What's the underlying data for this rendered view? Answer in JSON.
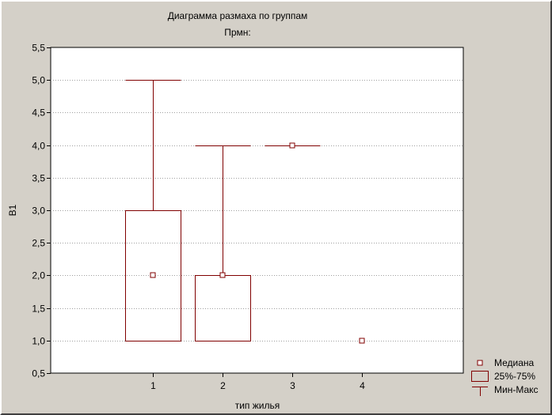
{
  "chart_data": {
    "type": "box",
    "title": "Диаграмма размаха по группам",
    "subtitle": "Прмн:",
    "xlabel": "тип жилья",
    "ylabel": "В1",
    "ylim": [
      0.5,
      5.5
    ],
    "yticks": [
      0.5,
      1.0,
      1.5,
      2.0,
      2.5,
      3.0,
      3.5,
      4.0,
      4.5,
      5.0,
      5.5
    ],
    "ytick_labels": [
      "0,5",
      "1,0",
      "1,5",
      "2,0",
      "2,5",
      "3,0",
      "3,5",
      "4,0",
      "4,5",
      "5,0",
      "5,5"
    ],
    "grid": true,
    "categories": [
      "1",
      "2",
      "3",
      "4"
    ],
    "groups": [
      {
        "category": "1",
        "median": 2,
        "q1": 1,
        "q3": 3,
        "min": 1,
        "max": 5
      },
      {
        "category": "2",
        "median": 2,
        "q1": 1,
        "q3": 2,
        "min": 1,
        "max": 4
      },
      {
        "category": "3",
        "median": 4,
        "q1": 4,
        "q3": 4,
        "min": 4,
        "max": 4
      },
      {
        "category": "4",
        "median": 1,
        "q1": 1,
        "q3": 1,
        "min": 1,
        "max": 1
      }
    ],
    "legend": {
      "placement": "bottom-right",
      "entries": [
        {
          "symbol": "median",
          "label": "Медиана"
        },
        {
          "symbol": "box",
          "label": "25%-75%"
        },
        {
          "symbol": "whisker",
          "label": "Мин-Макс"
        }
      ]
    },
    "colors": {
      "background": "#ffffff",
      "window": "#d4d0c8",
      "series": "#800000",
      "grid": "#a0a0a0"
    }
  }
}
